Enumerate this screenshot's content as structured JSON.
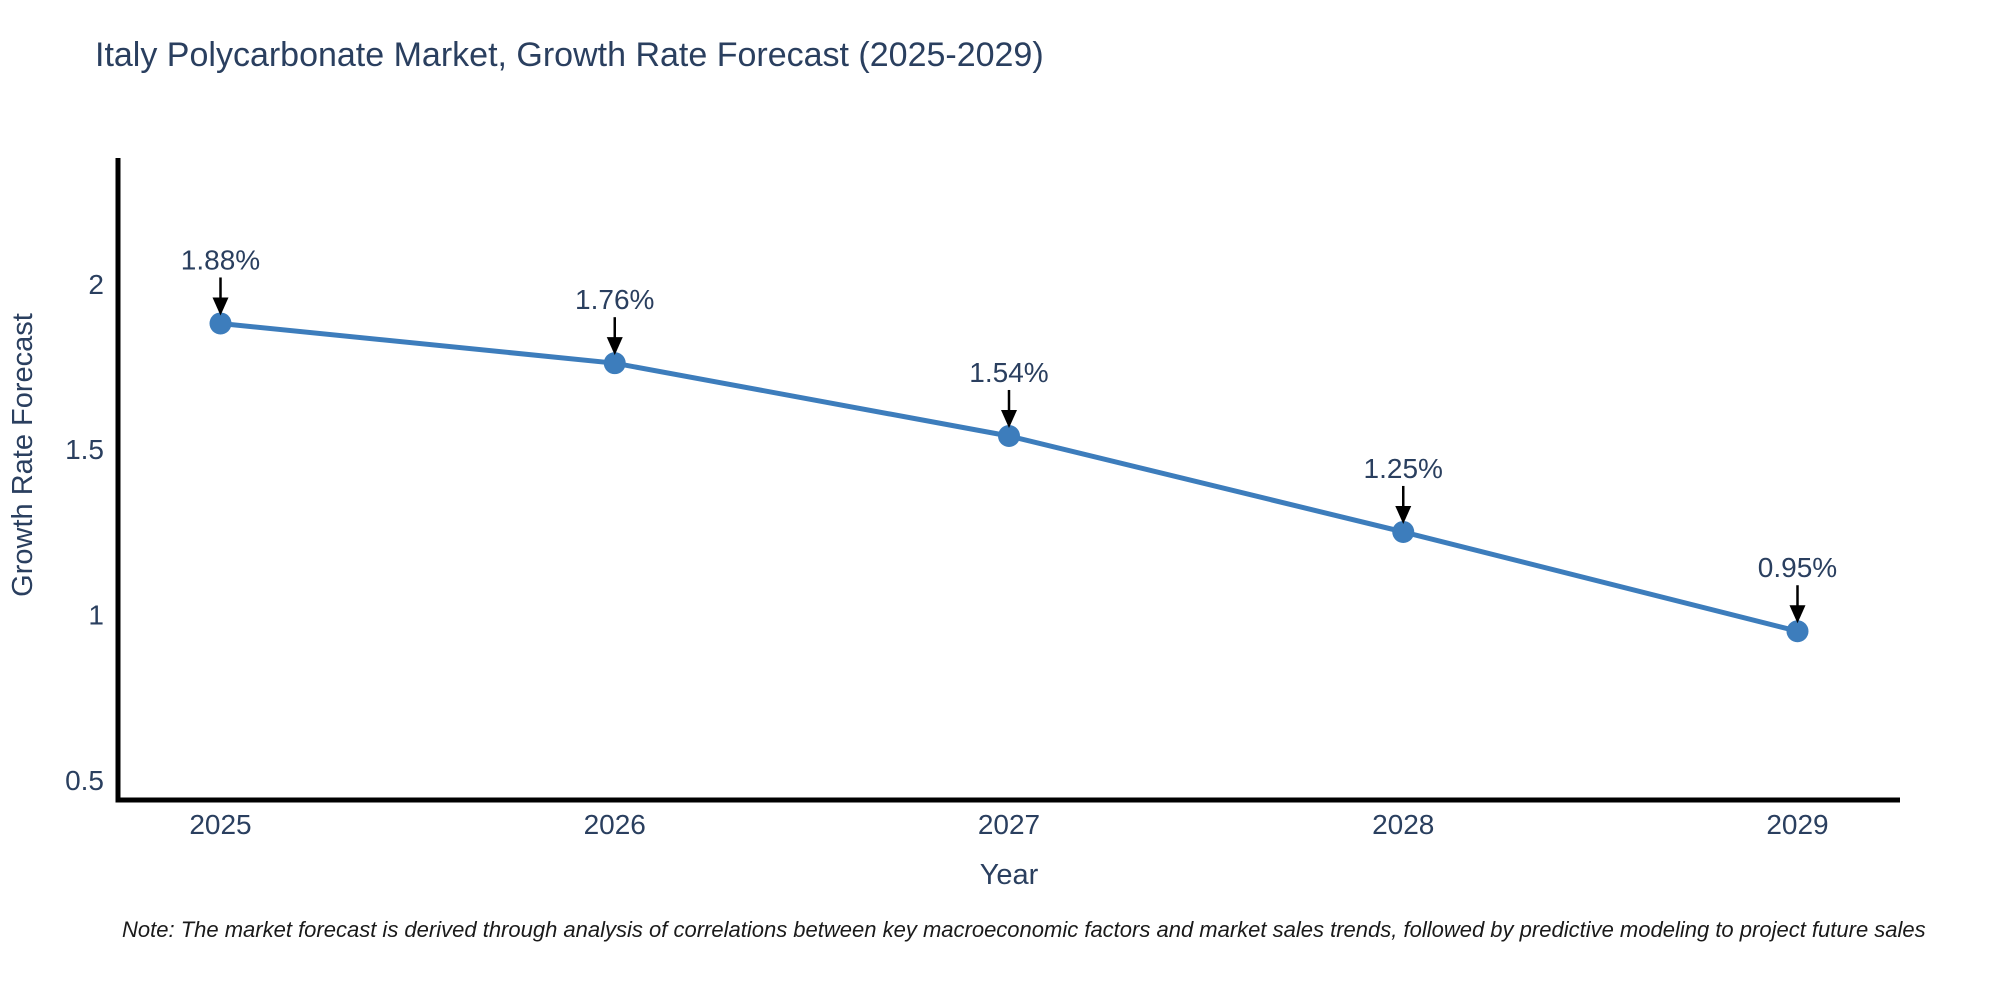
{
  "header": {
    "title": "Italy Polycarbonate Market, Growth Rate Forecast (2025-2029)"
  },
  "chart_data": {
    "type": "line",
    "title": "Italy Polycarbonate Market, Growth Rate Forecast (2025-2029)",
    "xlabel": "Year",
    "ylabel": "Growth Rate Forecast",
    "x": [
      2025,
      2026,
      2027,
      2028,
      2029
    ],
    "x_tick_labels": [
      "2025",
      "2026",
      "2027",
      "2028",
      "2029"
    ],
    "series": [
      {
        "name": "Growth Rate Forecast",
        "values": [
          1.88,
          1.76,
          1.54,
          1.25,
          0.95
        ]
      }
    ],
    "point_annotations": [
      "1.88%",
      "1.76%",
      "1.54%",
      "1.25%",
      "0.95%"
    ],
    "yticks": [
      0.5,
      1,
      1.5,
      2
    ],
    "ytick_labels": [
      "0.5",
      "1",
      "1.5",
      "2"
    ],
    "xlim": [
      2024.74,
      2029.26
    ],
    "ylim": [
      0.44,
      2.38
    ],
    "grid": false,
    "legend": "none",
    "colors": {
      "line": "#3d7dbc",
      "marker": "#3d7dbc",
      "arrow": "#000000",
      "axis_line": "#000000",
      "chart_text": "#2a3f5f",
      "note_text": "#1a1a1a",
      "background": "#ffffff"
    }
  },
  "footer": {
    "note": "Note: The market forecast is derived through analysis of correlations between key macroeconomic factors and market sales trends, followed by predictive modeling to project future sales"
  }
}
